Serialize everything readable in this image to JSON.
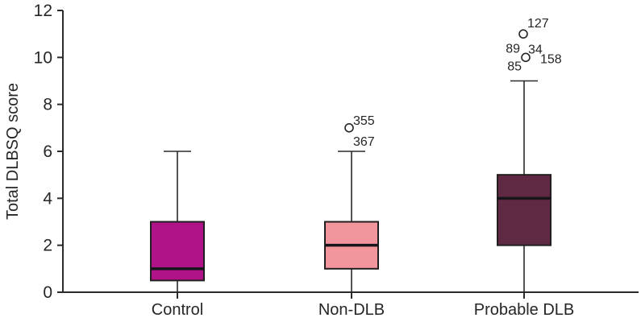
{
  "chart_data": {
    "type": "box",
    "title": "",
    "ylabel": "Total DLBSQ score",
    "xlabel": "",
    "ylim": [
      0,
      12
    ],
    "yticks": [
      0,
      2,
      4,
      6,
      8,
      10,
      12
    ],
    "grid": false,
    "legend": false,
    "categories": [
      "Control",
      "Non-DLB",
      "Probable DLB"
    ],
    "colors": {
      "background": "#ffffff",
      "axis": "#2b2b2b",
      "text": "#262626",
      "box_border": "#231f20",
      "median": "#16161a",
      "outlier_stroke": "#262626",
      "outlier_fill": "#ffffff"
    },
    "series": [
      {
        "category": "Control",
        "fill": "#b01387",
        "whisker_low": 0,
        "q1": 0.5,
        "median": 1,
        "q3": 3,
        "whisker_high": 6,
        "outliers": []
      },
      {
        "category": "Non-DLB",
        "fill": "#f2959d",
        "whisker_low": 0,
        "q1": 1,
        "median": 2,
        "q3": 3,
        "whisker_high": 6,
        "outliers": [
          {
            "value": 7,
            "dx": -3,
            "labels": [
              {
                "text": "355",
                "dx": 5,
                "dy": -4,
                "anchor": "start"
              },
              {
                "text": "367",
                "dx": 5,
                "dy": 22,
                "anchor": "start"
              }
            ]
          }
        ]
      },
      {
        "category": "Probable DLB",
        "fill": "#5f2943",
        "whisker_low": 0,
        "q1": 2,
        "median": 4,
        "q3": 5,
        "whisker_high": 9,
        "outliers": [
          {
            "value": 11,
            "dx": -1,
            "labels": [
              {
                "text": "127",
                "dx": 5,
                "dy": -8,
                "anchor": "start"
              }
            ]
          },
          {
            "value": 10,
            "dx": 2,
            "labels": [
              {
                "text": "89",
                "dx": -7,
                "dy": -6,
                "anchor": "end"
              },
              {
                "text": "34",
                "dx": 3,
                "dy": -5,
                "anchor": "start"
              },
              {
                "text": "158",
                "dx": 18,
                "dy": 7,
                "anchor": "start"
              },
              {
                "text": "85",
                "dx": -5,
                "dy": 16,
                "anchor": "end"
              }
            ]
          }
        ]
      }
    ]
  }
}
